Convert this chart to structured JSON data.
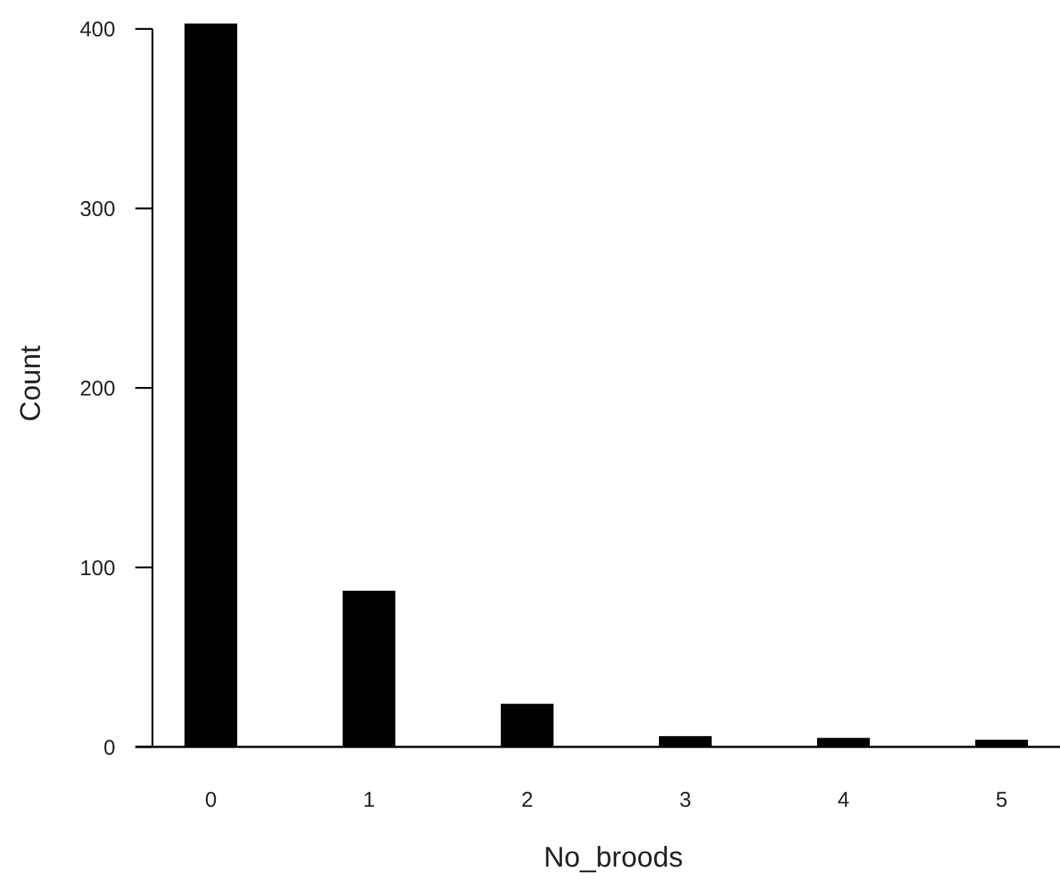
{
  "chart_data": {
    "type": "bar",
    "xlabel": "No_broods",
    "ylabel": "Count",
    "categories": [
      "0",
      "1",
      "2",
      "3",
      "4",
      "5"
    ],
    "values": [
      403,
      87,
      24,
      6,
      5,
      4
    ],
    "color": "#000000",
    "ylim": [
      0,
      405
    ],
    "yticks": [
      0,
      100,
      200,
      300,
      400
    ],
    "grid": false
  }
}
